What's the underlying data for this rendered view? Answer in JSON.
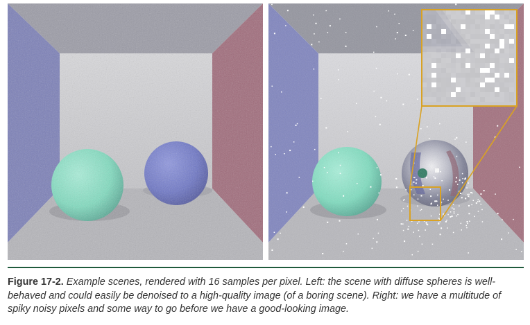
{
  "figure": {
    "label": "Figure 17-2.",
    "caption": "Example scenes, rendered with 16 samples per pixel. Left: the scene with diffuse spheres is well-behaved and could easily be denoised to a high-quality image (of a boring scene). Right: we have a multitude of spiky noisy pixels and some way to go before we have a good-looking image.",
    "rule_color": "#1f5a3c",
    "highlight_color": "#d9a223"
  },
  "scenes": {
    "left": {
      "render": "cornell-box-diffuse-spheres",
      "samples_per_pixel": 16
    },
    "right": {
      "render": "cornell-box-mirror-sphere-fireflies",
      "samples_per_pixel": 16,
      "has_zoom_inset": true
    }
  },
  "colors": {
    "wall_left": "#7b7fb8",
    "wall_right": "#a06a7a",
    "sphere_green": "#7fdcbf",
    "sphere_blue": "#6c75c6",
    "floor": "#b5b5ba"
  }
}
